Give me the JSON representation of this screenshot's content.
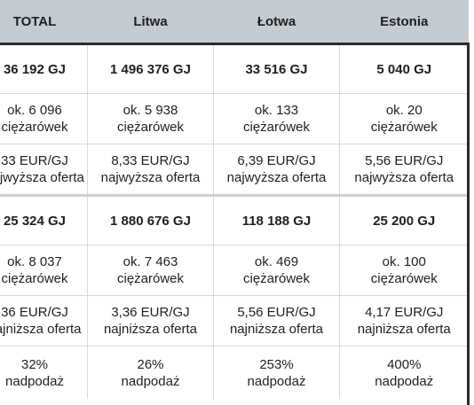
{
  "header": {
    "total": "TOTAL",
    "litwa": "Litwa",
    "lotwa": "Łotwa",
    "estonia": "Estonia"
  },
  "rows": {
    "amount1": {
      "total": "36 192 GJ",
      "litwa": "1 496 376 GJ",
      "lotwa": "33 516 GJ",
      "estonia": "5 040 GJ"
    },
    "trucks1": {
      "total": [
        "ok. 6 096",
        "ciężarówek"
      ],
      "litwa": [
        "ok. 5 938",
        "ciężarówek"
      ],
      "lotwa": [
        "ok. 133",
        "ciężarówek"
      ],
      "estonia": [
        "ok. 20",
        "ciężarówek"
      ]
    },
    "price1": {
      "total": [
        "33 EUR/GJ",
        "najwyższa oferta"
      ],
      "litwa": [
        "8,33 EUR/GJ",
        "najwyższa oferta"
      ],
      "lotwa": [
        "6,39 EUR/GJ",
        "najwyższa oferta"
      ],
      "estonia": [
        "5,56 EUR/GJ",
        "najwyższa oferta"
      ]
    },
    "amount2": {
      "total": "25 324 GJ",
      "litwa": "1 880 676 GJ",
      "lotwa": "118 188 GJ",
      "estonia": "25 200 GJ"
    },
    "trucks2": {
      "total": [
        "ok. 8 037",
        "ciężarówek"
      ],
      "litwa": [
        "ok. 7 463",
        "ciężarówek"
      ],
      "lotwa": [
        "ok. 469",
        "ciężarówek"
      ],
      "estonia": [
        "ok. 100",
        "ciężarówek"
      ]
    },
    "price2": {
      "total": [
        "36 EUR/GJ",
        "najniższa oferta"
      ],
      "litwa": [
        "3,36 EUR/GJ",
        "najniższa oferta"
      ],
      "lotwa": [
        "5,56 EUR/GJ",
        "najniższa oferta"
      ],
      "estonia": [
        "4,17 EUR/GJ",
        "najniższa oferta"
      ]
    },
    "surplus": {
      "total": [
        "32%",
        "nadpodaż"
      ],
      "litwa": [
        "26%",
        "nadpodaż"
      ],
      "lotwa": [
        "253%",
        "nadpodaż"
      ],
      "estonia": [
        "400%",
        "nadpodaż"
      ]
    }
  }
}
